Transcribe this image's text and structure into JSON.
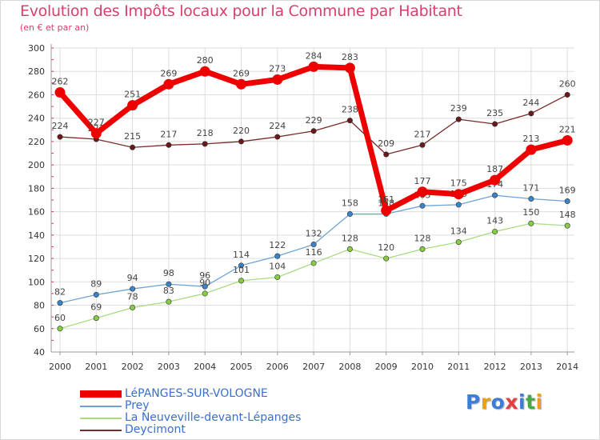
{
  "header": {
    "title": "Evolution des Impôts locaux pour la Commune par Habitant",
    "subtitle": "(en € et par an)"
  },
  "logo": {
    "text": "Proxiti",
    "letters": [
      "P",
      "r",
      "o",
      "x",
      "i",
      "t",
      "i"
    ],
    "colors": [
      "#3b7dd8",
      "#e8a020",
      "#3b7dd8",
      "#e04040",
      "#3b7dd8",
      "#44aa44",
      "#e8a020"
    ]
  },
  "chart_data": {
    "type": "line",
    "title": "Evolution des Impôts locaux pour la Commune par Habitant",
    "subtitle": "(en € et par an)",
    "xlabel": "",
    "ylabel": "",
    "ylim": [
      40,
      300
    ],
    "yticks": [
      40,
      60,
      80,
      100,
      120,
      140,
      160,
      180,
      200,
      220,
      240,
      260,
      280,
      300
    ],
    "grid": true,
    "legend_position": "bottom-left",
    "categories": [
      "2000",
      "2001",
      "2002",
      "2003",
      "2004",
      "2005",
      "2006",
      "2007",
      "2008",
      "2009",
      "2010",
      "2011",
      "2012",
      "2013",
      "2014"
    ],
    "series": [
      {
        "name": "LéPANGES-SUR-VOLOGNE",
        "color": "#ee0000",
        "marker": "#ee0000",
        "labelColor": "#444444",
        "values": [
          262,
          227,
          251,
          269,
          280,
          269,
          273,
          284,
          283,
          161,
          177,
          175,
          187,
          213,
          221
        ]
      },
      {
        "name": "Prey",
        "color": "#6fa3d6",
        "marker": "#3a84c8",
        "labelColor": "#444444",
        "values": [
          82,
          89,
          94,
          98,
          96,
          114,
          122,
          132,
          158,
          158,
          165,
          166,
          174,
          171,
          169
        ]
      },
      {
        "name": "La Neuveville-devant-Lépanges",
        "color": "#a8dc80",
        "marker": "#88cc44",
        "labelColor": "#444444",
        "values": [
          60,
          69,
          78,
          83,
          90,
          101,
          104,
          116,
          128,
          120,
          128,
          134,
          143,
          150,
          148
        ]
      },
      {
        "name": "Deycimont",
        "color": "#7a2a2a",
        "marker": "#6a1818",
        "labelColor": "#444444",
        "values": [
          224,
          222,
          215,
          217,
          218,
          220,
          224,
          229,
          238,
          209,
          217,
          239,
          235,
          244,
          260
        ]
      }
    ]
  }
}
